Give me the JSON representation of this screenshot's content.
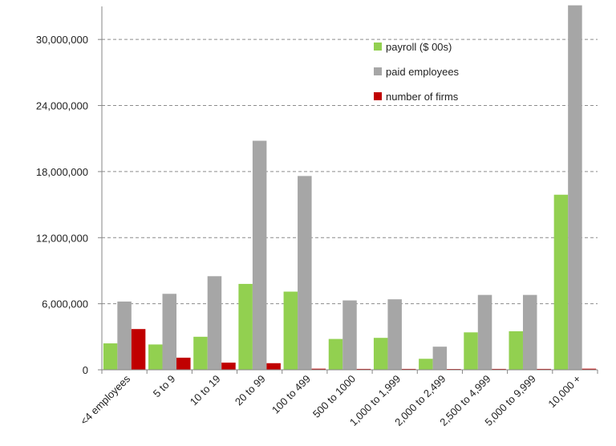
{
  "chart_data": {
    "type": "bar",
    "title": "",
    "xlabel": "",
    "ylabel": "",
    "ylim": [
      0,
      33000000
    ],
    "yticks": [
      0,
      6000000,
      12000000,
      18000000,
      24000000,
      30000000
    ],
    "ytick_labels": [
      "0",
      "6,000,000",
      "12,000,000",
      "18,000,000",
      "24,000,000",
      "30,000,000"
    ],
    "grid": true,
    "legend_position": "top-right",
    "categories": [
      "<4 employees",
      "5 to 9",
      "10 to 19",
      "20 to 99",
      "100 to 499",
      "500 to 1000",
      "1,000 to 1,999",
      "2,000 to 2,499",
      "2,500 to 4,999",
      "5,000 to 9,999",
      "10,000 +"
    ],
    "series": [
      {
        "name": "payroll ($ 00s)",
        "color": "#92d050",
        "values": [
          2400000,
          2300000,
          3000000,
          7800000,
          7100000,
          2800000,
          2900000,
          1000000,
          3400000,
          3500000,
          15900000
        ]
      },
      {
        "name": "paid employees",
        "color": "#a6a6a6",
        "values": [
          6200000,
          6900000,
          8500000,
          20800000,
          17600000,
          6300000,
          6400000,
          2100000,
          6800000,
          6800000,
          33100000
        ]
      },
      {
        "name": "number of firms",
        "color": "#c00000",
        "values": [
          3700000,
          1100000,
          650000,
          600000,
          100000,
          80000,
          80000,
          70000,
          80000,
          80000,
          100000
        ]
      }
    ]
  }
}
